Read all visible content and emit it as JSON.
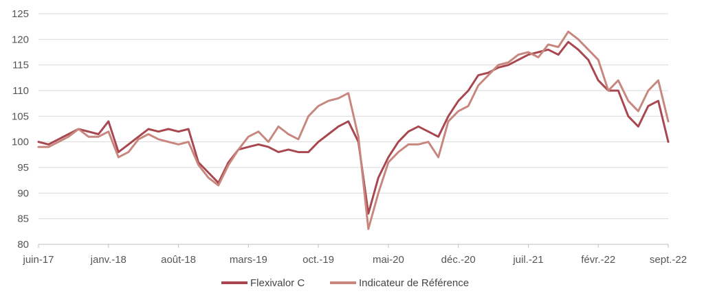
{
  "chart_data": {
    "type": "line",
    "title": "",
    "xlabel": "",
    "ylabel": "",
    "ylim": [
      80,
      125
    ],
    "yticks": [
      80,
      85,
      90,
      95,
      100,
      105,
      110,
      115,
      120,
      125
    ],
    "xticks": [
      "juin-17",
      "janv.-18",
      "août-18",
      "mars-19",
      "oct.-19",
      "mai-20",
      "déc.-20",
      "juil.-21",
      "févr.-22",
      "sept.-22"
    ],
    "grid": "horizontal",
    "legend": "bottom-center",
    "colors": {
      "flexivalor": "#a8474f",
      "reference": "#c8877e",
      "grid": "#d9d9d9",
      "axis": "#bfbfbf"
    },
    "series": [
      {
        "name": "Flexivalor C",
        "x": [
          "2017-06",
          "2017-07",
          "2017-08",
          "2017-09",
          "2017-10",
          "2017-11",
          "2017-12",
          "2018-01",
          "2018-02",
          "2018-03",
          "2018-04",
          "2018-05",
          "2018-06",
          "2018-07",
          "2018-08",
          "2018-09",
          "2018-10",
          "2018-11",
          "2018-12",
          "2019-01",
          "2019-02",
          "2019-03",
          "2019-04",
          "2019-05",
          "2019-06",
          "2019-07",
          "2019-08",
          "2019-09",
          "2019-10",
          "2019-11",
          "2019-12",
          "2020-01",
          "2020-02",
          "2020-03",
          "2020-04",
          "2020-05",
          "2020-06",
          "2020-07",
          "2020-08",
          "2020-09",
          "2020-10",
          "2020-11",
          "2020-12",
          "2021-01",
          "2021-02",
          "2021-03",
          "2021-04",
          "2021-05",
          "2021-06",
          "2021-07",
          "2021-08",
          "2021-09",
          "2021-10",
          "2021-11",
          "2021-12",
          "2022-01",
          "2022-02",
          "2022-03",
          "2022-04",
          "2022-05",
          "2022-06",
          "2022-07",
          "2022-08",
          "2022-09"
        ],
        "values": [
          100,
          99.5,
          100.5,
          101.5,
          102.5,
          102,
          101.5,
          104,
          98,
          99.5,
          101,
          102.5,
          102,
          102.5,
          102,
          102.5,
          96,
          94,
          92,
          96,
          98.5,
          99,
          99.5,
          99,
          98,
          98.5,
          98,
          98,
          100,
          101.5,
          103,
          104,
          100,
          86,
          93,
          97,
          100,
          102,
          103,
          102,
          101,
          105,
          108,
          110,
          113,
          113.5,
          114.5,
          115,
          116,
          117,
          117.5,
          118,
          117,
          119.5,
          118,
          116,
          112,
          110,
          110,
          105,
          103,
          107,
          108,
          100
        ]
      },
      {
        "name": "Indicateur de Référence",
        "x": [
          "2017-06",
          "2017-07",
          "2017-08",
          "2017-09",
          "2017-10",
          "2017-11",
          "2017-12",
          "2018-01",
          "2018-02",
          "2018-03",
          "2018-04",
          "2018-05",
          "2018-06",
          "2018-07",
          "2018-08",
          "2018-09",
          "2018-10",
          "2018-11",
          "2018-12",
          "2019-01",
          "2019-02",
          "2019-03",
          "2019-04",
          "2019-05",
          "2019-06",
          "2019-07",
          "2019-08",
          "2019-09",
          "2019-10",
          "2019-11",
          "2019-12",
          "2020-01",
          "2020-02",
          "2020-03",
          "2020-04",
          "2020-05",
          "2020-06",
          "2020-07",
          "2020-08",
          "2020-09",
          "2020-10",
          "2020-11",
          "2020-12",
          "2021-01",
          "2021-02",
          "2021-03",
          "2021-04",
          "2021-05",
          "2021-06",
          "2021-07",
          "2021-08",
          "2021-09",
          "2021-10",
          "2021-11",
          "2021-12",
          "2022-01",
          "2022-02",
          "2022-03",
          "2022-04",
          "2022-05",
          "2022-06",
          "2022-07",
          "2022-08",
          "2022-09"
        ],
        "values": [
          99,
          99,
          100,
          101,
          102.5,
          101,
          101,
          102,
          97,
          98,
          100.5,
          101.5,
          100.5,
          100,
          99.5,
          100,
          95.5,
          93,
          91.5,
          95.5,
          98.5,
          101,
          102,
          100,
          103,
          101.5,
          100.5,
          105,
          107,
          108,
          108.5,
          109.5,
          101,
          83,
          90,
          96,
          98,
          99.5,
          99.5,
          100,
          97,
          104,
          106,
          107,
          111,
          113,
          115,
          115.5,
          117,
          117.5,
          116.5,
          119,
          118.5,
          121.5,
          120,
          118,
          116,
          110,
          112,
          108,
          106,
          110,
          112,
          104
        ]
      }
    ]
  }
}
